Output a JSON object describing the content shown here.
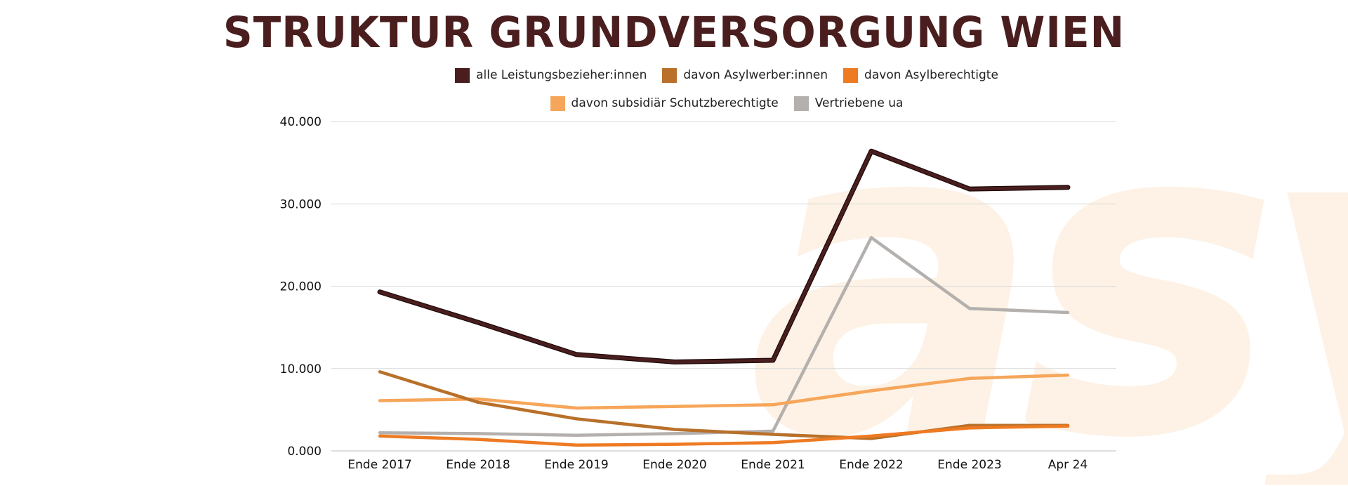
{
  "title": "STRUKTUR GRUNDVERSORGUNG WIEN",
  "watermark": "asyl",
  "chart_data": {
    "type": "line",
    "title": "STRUKTUR GRUNDVERSORGUNG WIEN",
    "categories": [
      "Ende 2017",
      "Ende 2018",
      "Ende 2019",
      "Ende 2020",
      "Ende 2021",
      "Ende 2022",
      "Ende 2023",
      "Apr 24"
    ],
    "ylim": [
      0,
      40000
    ],
    "yticks": [
      0,
      10000,
      20000,
      30000,
      40000
    ],
    "ytick_labels": [
      "0.000",
      "10.000",
      "20.000",
      "30.000",
      "40.000"
    ],
    "grid": true,
    "legend_position": "top",
    "series": [
      {
        "name": "alle Leistungsbezieher:innen",
        "color": "#4a1e1e",
        "values": [
          19300,
          15600,
          11700,
          10800,
          11000,
          36400,
          31800,
          32000
        ]
      },
      {
        "name": "davon Asylwerber:innen",
        "color": "#b8702a",
        "values": [
          9600,
          5900,
          3900,
          2600,
          2000,
          1500,
          3100,
          3100
        ]
      },
      {
        "name": "davon Asylberechtigte",
        "color": "#ee7a22",
        "values": [
          1800,
          1400,
          700,
          800,
          1000,
          1800,
          2800,
          3000
        ]
      },
      {
        "name": "davon subsidiär Schutzberechtigte",
        "color": "#f6a65a",
        "values": [
          6100,
          6300,
          5200,
          5400,
          5600,
          7300,
          8800,
          9200
        ]
      },
      {
        "name": "Vertriebene ua",
        "color": "#b4b0ae",
        "values": [
          2200,
          2100,
          1900,
          2100,
          2400,
          25900,
          17300,
          16800
        ]
      }
    ]
  }
}
